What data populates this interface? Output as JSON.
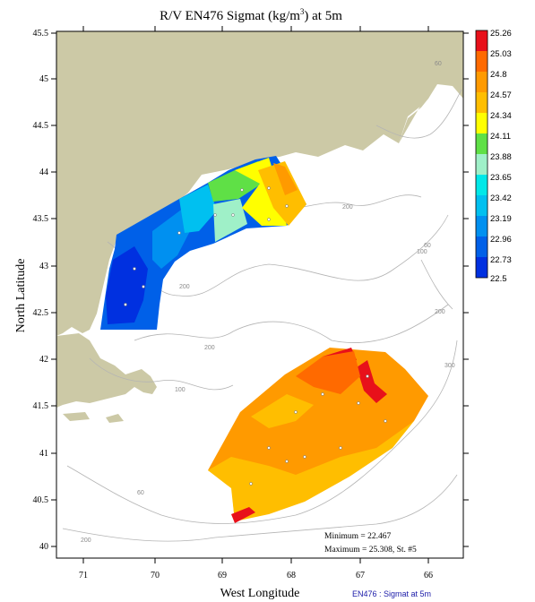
{
  "title": {
    "prefix": "R/V EN476 Sigmat (kg/m",
    "superscript": "3",
    "suffix": ") at 5m"
  },
  "axes": {
    "xlabel": "West Longitude",
    "ylabel": "North Latitude",
    "x_ticks": [
      "71",
      "70",
      "69",
      "68",
      "67",
      "66"
    ],
    "y_ticks": [
      "45.5",
      "45",
      "44.5",
      "44",
      "43.5",
      "43",
      "42.5",
      "42",
      "41.5",
      "41",
      "40.5",
      "40"
    ]
  },
  "colorbar": {
    "labels": [
      "25.26",
      "25.03",
      "24.8",
      "24.57",
      "24.34",
      "24.11",
      "23.88",
      "23.65",
      "23.42",
      "23.19",
      "22.96",
      "22.73",
      "22.5"
    ],
    "colors": [
      "#e8101a",
      "#ff6a00",
      "#ff9a00",
      "#ffbe00",
      "#ffff00",
      "#5fe046",
      "#9ff0c8",
      "#00e8e8",
      "#00c0f0",
      "#0090f0",
      "#0060e8",
      "#0030e0"
    ]
  },
  "isobath_labels": {
    "gulf_200_a": "200",
    "gulf_200_b": "200",
    "gulf_200_c": "200",
    "gulf_200_d": "200",
    "shelf_100": "100",
    "shelf_60_east": "60",
    "shelf_60_south": "60",
    "slope_300": "300",
    "slope_200": "200",
    "ne_60": "60",
    "ne_100": "100"
  },
  "stats": {
    "minimum": "Minimum = 22.467",
    "maximum": "Maximum = 25.308, St. #5"
  },
  "footer": "EN476 : Sigmat at 5m",
  "colors": {
    "land": "#ccc9a6",
    "isobath": "#b4b4b4",
    "frame": "#000000"
  }
}
